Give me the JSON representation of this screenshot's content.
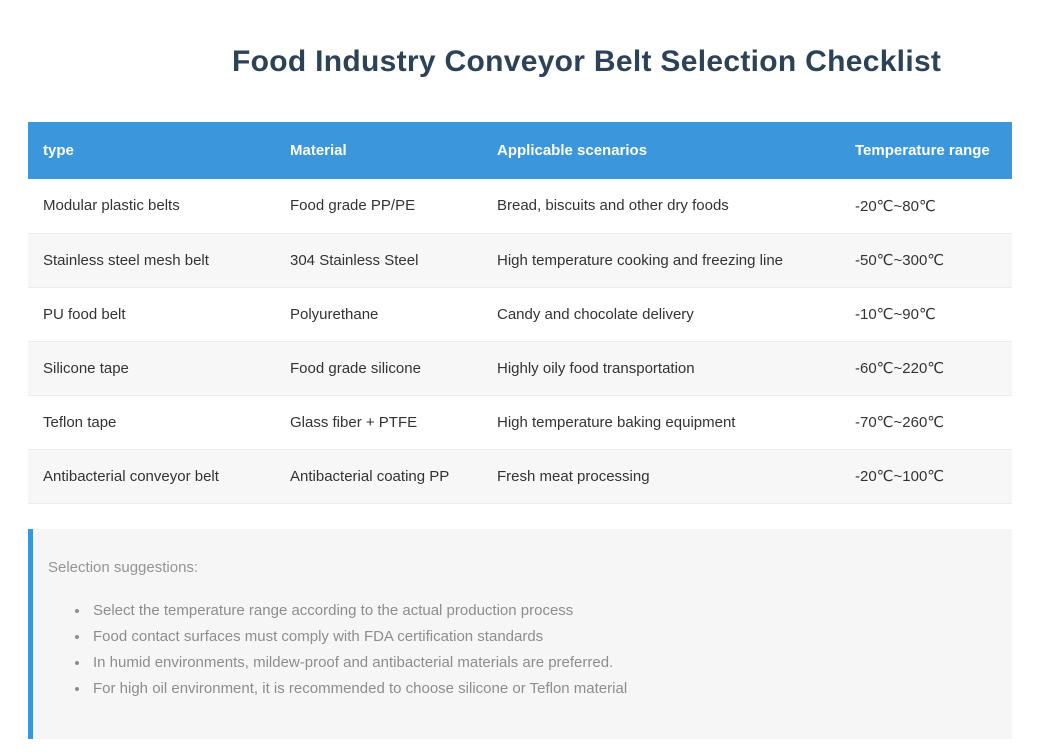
{
  "page": {
    "title": "Food Industry Conveyor Belt Selection Checklist"
  },
  "table": {
    "columns": [
      "type",
      "Material",
      "Applicable scenarios",
      "Temperature range"
    ],
    "rows": [
      [
        "Modular plastic belts",
        "Food grade PP/PE",
        "Bread, biscuits and other dry foods",
        "-20℃~80℃"
      ],
      [
        "Stainless steel mesh belt",
        "304 Stainless Steel",
        "High temperature cooking and freezing line",
        "-50℃~300℃"
      ],
      [
        "PU food belt",
        "Polyurethane",
        "Candy and chocolate delivery",
        "-10℃~90℃"
      ],
      [
        "Silicone tape",
        "Food grade silicone",
        "Highly oily food transportation",
        "-60℃~220℃"
      ],
      [
        "Teflon tape",
        "Glass fiber + PTFE",
        "High temperature baking equipment",
        "-70℃~260℃"
      ],
      [
        "Antibacterial conveyor belt",
        "Antibacterial coating PP",
        "Fresh meat processing",
        "-20℃~100℃"
      ]
    ]
  },
  "suggestions": {
    "heading": "Selection suggestions:",
    "items": [
      "Select the temperature range according to the actual production process",
      "Food contact surfaces must comply with FDA certification standards",
      "In humid environments, mildew-proof and antibacterial materials are preferred.",
      "For high oil environment, it is recommended to choose silicone or Teflon material"
    ]
  },
  "colors": {
    "header_bg": "#3b96dc",
    "title_text": "#2c4257",
    "body_text": "#333333",
    "row_alt_bg": "#f7f7f7",
    "row_border": "#ececec",
    "panel_bg": "#f6f6f6",
    "panel_accent_border": "#3b96dc",
    "panel_text": "#8d8d8d"
  }
}
